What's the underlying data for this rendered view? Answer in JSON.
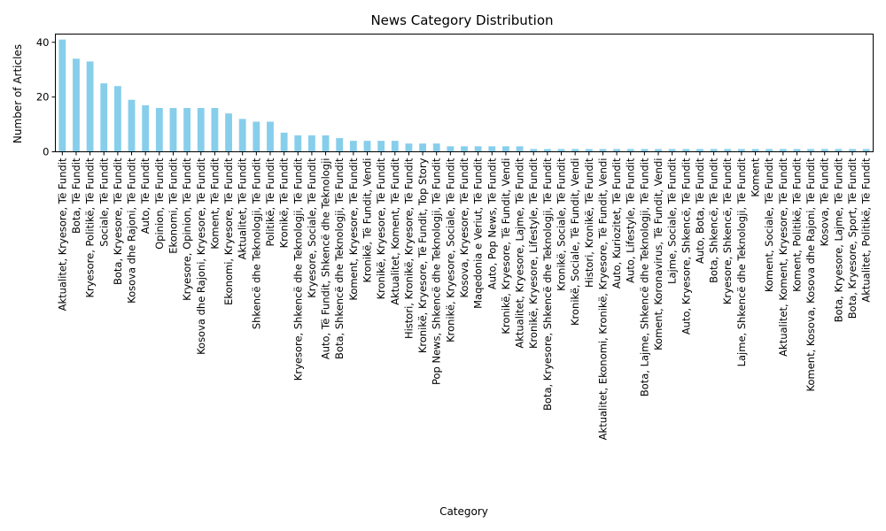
{
  "chart_data": {
    "type": "bar",
    "title": "News Category Distribution",
    "xlabel": "Category",
    "ylabel": "Number of Articles",
    "ylim": [
      0,
      43
    ],
    "yticks": [
      0,
      20,
      40
    ],
    "grid": false,
    "legend": "none",
    "bar_color": "#87ceeb",
    "categories": [
      "Aktualitet, Kryesore, Të Fundit",
      "Bota, Të Fundit",
      "Kryesore, Politikë, Të Fundit",
      "Sociale, Të Fundit",
      "Bota, Kryesore, Të Fundit",
      "Kosova dhe Rajoni, Të Fundit",
      "Auto, Të Fundit",
      "Opinion, Të Fundit",
      "Ekonomi, Të Fundit",
      "Kryesore, Opinion, Të Fundit",
      "Kosova dhe Rajoni, Kryesore, Të Fundit",
      "Koment, Të Fundit",
      "Ekonomi, Kryesore, Të Fundit",
      "Aktualitet, Të Fundit",
      "Shkencë dhe Teknologji, Të Fundit",
      "Politikë, Të Fundit",
      "Kronikë, Të Fundit",
      "Kryesore, Shkencë dhe Teknologji, Të Fundit",
      "Kryesore, Sociale, Të Fundit",
      "Auto, Të Fundit, Shkencë dhe Teknologji",
      "Bota, Shkencë dhe Teknologji, Të Fundit",
      "Koment, Kryesore, Të Fundit",
      "Kronikë, Të Fundit, Vendi",
      "Kronikë, Kryesore, Të Fundit",
      "Aktualitet, Koment, Të Fundit",
      "Histori, Kronikë, Kryesore, Të Fundit",
      "Kronikë, Kryesore, Të Fundit, Top Story",
      "Pop News, Shkencë dhe Teknologji, Të Fundit",
      "Kronikë, Kryesore, Sociale, Të Fundit",
      "Kosova, Kryesore, Të Fundit",
      "Maqedonia e Veriut, Të Fundit",
      "Auto, Pop News, Të Fundit",
      "Kronikë, Kryesore, Të Fundit, Vendi",
      "Aktualitet, Kryesore, Lajme, Të Fundit",
      "Kronikë, Kryesore, Lifestyle, Të Fundit",
      "Bota, Kryesore, Shkencë dhe Teknologji, Të Fundit",
      "Kronikë, Sociale, Të Fundit",
      "Kronikë, Sociale, Të Fundit, Vendi",
      "Histori, Kronikë, Të Fundit",
      "Aktualitet, Ekonomi, Kronikë, Kryesore, Të Fundit, Vendi",
      "Auto, Kuriozitet, Të Fundit",
      "Auto, Lifestyle, Të Fundit",
      "Bota, Lajme, Shkencë dhe Teknologji, Të Fundit",
      "Koment, Koronavirus, Të Fundit, Vendi",
      "Lajme, Sociale, Të Fundit",
      "Auto, Kryesore, Shkencë, Të Fundit",
      "Auto, Bota, Të Fundit",
      "Bota, Shkencë, Të Fundit",
      "Kryesore, Shkencë, Të Fundit",
      "Lajme, Shkencë dhe Teknologji, Të Fundit",
      "Koment",
      "Koment, Sociale, Të Fundit",
      "Aktualitet, Koment, Kryesore, Të Fundit",
      "Koment, Politikë, Të Fundit",
      "Koment, Kosova, Kosova dhe Rajoni, Të Fundit",
      "Kosova, Të Fundit",
      "Bota, Kryesore, Lajme, Të Fundit",
      "Bota, Kryesore, Sport, Të Fundit",
      "Aktualitet, Politikë, Të Fundit"
    ],
    "values": [
      41,
      34,
      33,
      25,
      24,
      19,
      17,
      16,
      16,
      16,
      16,
      16,
      14,
      12,
      11,
      11,
      7,
      6,
      6,
      6,
      5,
      4,
      4,
      4,
      4,
      3,
      3,
      3,
      2,
      2,
      2,
      2,
      2,
      2,
      1,
      1,
      1,
      1,
      1,
      1,
      1,
      1,
      1,
      1,
      1,
      1,
      1,
      1,
      1,
      1,
      1,
      1,
      1,
      1,
      1,
      1,
      1,
      1,
      1
    ]
  }
}
